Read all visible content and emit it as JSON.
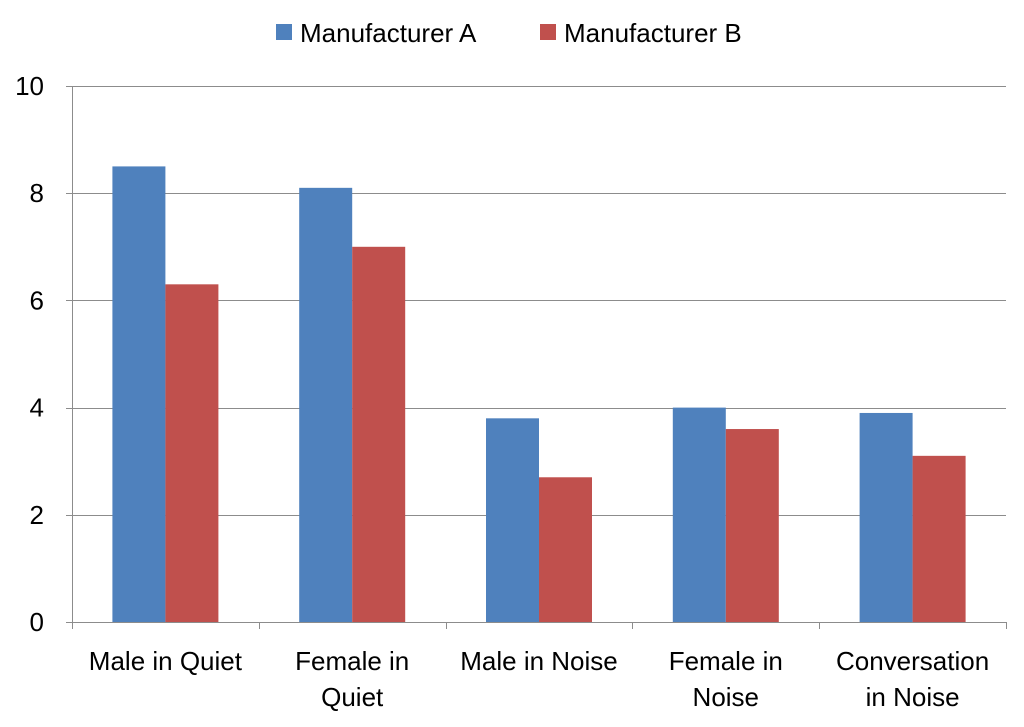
{
  "chart_data": {
    "type": "bar",
    "categories": [
      [
        "Male in Quiet"
      ],
      [
        "Female in",
        "Quiet"
      ],
      [
        "Male in Noise"
      ],
      [
        "Female in",
        "Noise"
      ],
      [
        "Conversation",
        "in Noise"
      ]
    ],
    "series": [
      {
        "name": "Manufacturer A",
        "color": "#4f81bd",
        "values": [
          8.5,
          8.1,
          3.8,
          4.0,
          3.9
        ]
      },
      {
        "name": "Manufacturer B",
        "color": "#c0504d",
        "values": [
          6.3,
          7.0,
          2.7,
          3.6,
          3.1
        ]
      }
    ],
    "ylim": [
      0,
      10
    ],
    "yticks": [
      0,
      2,
      4,
      6,
      8,
      10
    ],
    "grid": true,
    "legend_position": "top"
  }
}
